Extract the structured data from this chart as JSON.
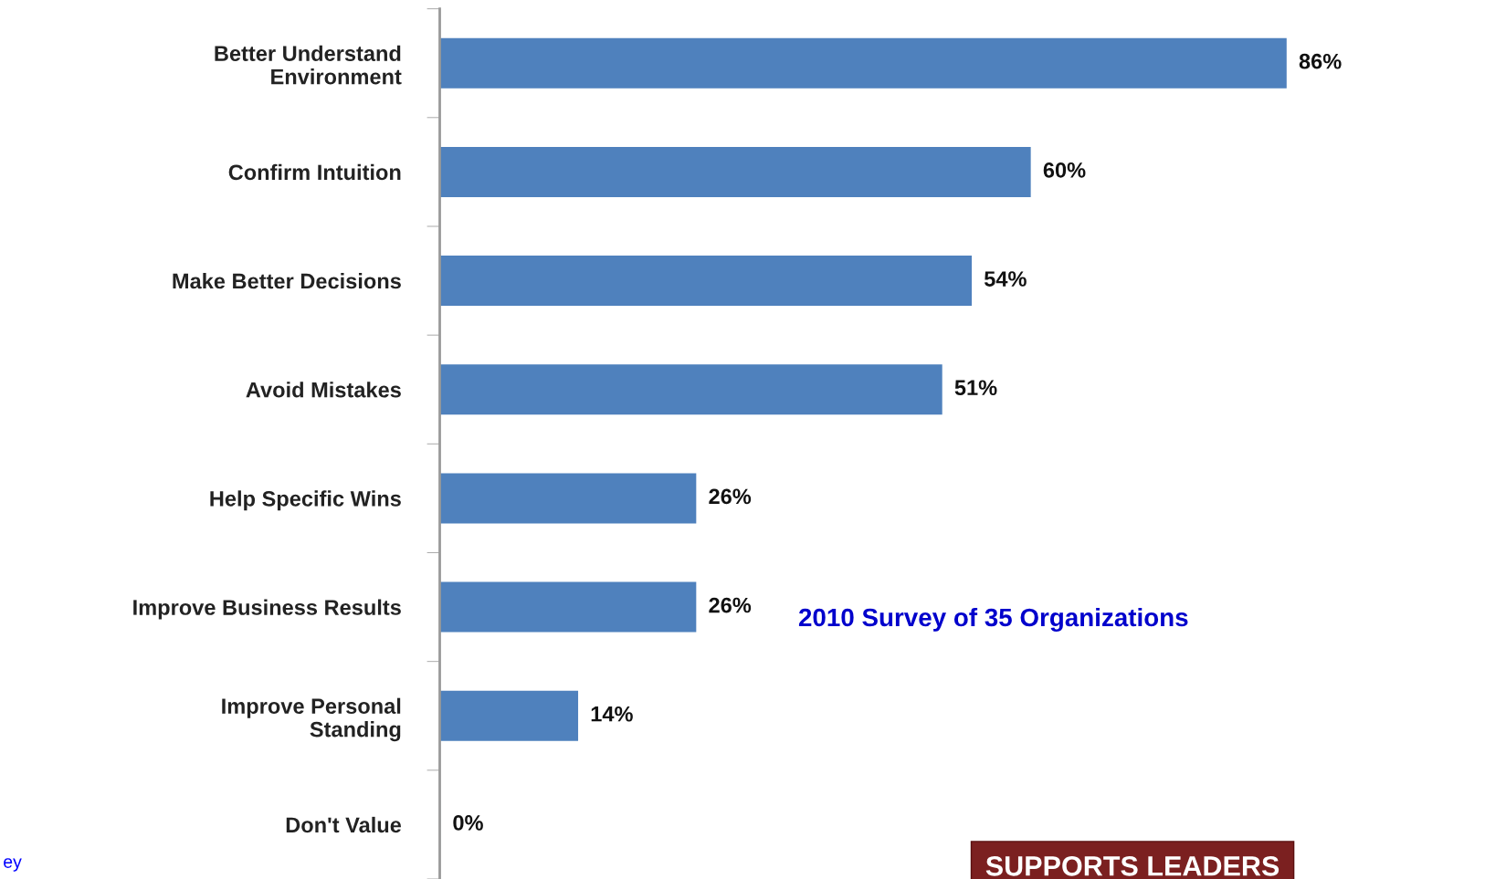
{
  "chart_data": {
    "type": "bar",
    "orientation": "horizontal",
    "categories": [
      "Better Understand\nEnvironment",
      "Confirm Intuition",
      "Make Better Decisions",
      "Avoid Mistakes",
      "Help Specific Wins",
      "Improve Business Results",
      "Improve Personal\nStanding",
      "Don't Value"
    ],
    "values": [
      86,
      60,
      54,
      51,
      26,
      26,
      14,
      0
    ],
    "value_labels": [
      "86%",
      "60%",
      "54%",
      "51%",
      "26%",
      "26%",
      "14%",
      "0%"
    ],
    "color": "#4f81bd",
    "tick_labels": "y",
    "annotations": [
      "2010 Survey of 35 Organizations",
      "SUPPORTS LEADERS",
      "ey"
    ]
  }
}
